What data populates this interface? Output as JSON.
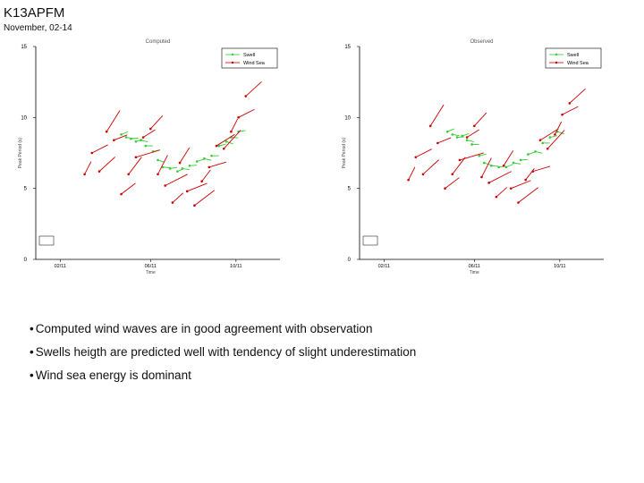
{
  "slide": {
    "title": "K13APFM",
    "subtitle": "November, 02-14"
  },
  "bullets": [
    "Computed wind waves are in good agreement with observation",
    "Swells heigth are predicted well with tendency of slight underestimation",
    "Wind sea energy is dominant"
  ],
  "colors": {
    "swell": "#33cc33",
    "wind_sea": "#cc0000",
    "axis": "#000000"
  },
  "chart_data": [
    {
      "type": "scatter",
      "title": "Computed",
      "ylabel": "Peak Period (s)",
      "xlabel": "Time",
      "ylim": [
        0,
        15
      ],
      "y_ticks": [
        0,
        5,
        10,
        15
      ],
      "x_ticks": [
        "02/11",
        "06/11",
        "10/11"
      ],
      "legend": [
        "Swell",
        "Wind Sea"
      ],
      "legend_position": "top-right",
      "series": [
        {
          "name": "Swell",
          "color": "#33cc33",
          "x": [
            3.5,
            3.7,
            3.9,
            4.1,
            4.3,
            4.5,
            4.8,
            5.0,
            5.2,
            5.5,
            5.8,
            6.0,
            6.3,
            6.6,
            6.9,
            7.2,
            7.5,
            7.8,
            8.0,
            8.3
          ],
          "y": [
            8.8,
            8.6,
            8.5,
            8.3,
            8.4,
            8.0,
            7.6,
            7.0,
            6.5,
            6.4,
            6.2,
            6.4,
            6.6,
            6.9,
            7.1,
            7.3,
            8.0,
            8.3,
            8.6,
            9.0
          ]
        },
        {
          "name": "Wind Sea",
          "color": "#cc0000",
          "x": [
            2.0,
            2.3,
            2.6,
            2.9,
            3.2,
            3.5,
            3.8,
            4.1,
            4.4,
            4.7,
            5.0,
            5.3,
            5.6,
            5.9,
            6.2,
            6.5,
            6.8,
            7.1,
            7.4,
            7.7,
            8.0,
            8.3,
            8.6
          ],
          "y": [
            6.0,
            7.5,
            6.2,
            9.0,
            8.4,
            4.6,
            6.0,
            7.2,
            8.6,
            9.2,
            6.0,
            5.2,
            4.0,
            6.8,
            4.8,
            3.8,
            5.5,
            6.5,
            8.0,
            7.8,
            9.0,
            10.0,
            11.5
          ]
        }
      ]
    },
    {
      "type": "scatter",
      "title": "Observed",
      "ylabel": "Peak Period (s)",
      "xlabel": "Time",
      "ylim": [
        0,
        15
      ],
      "y_ticks": [
        0,
        5,
        10,
        15
      ],
      "x_ticks": [
        "02/11",
        "06/11",
        "10/11"
      ],
      "legend": [
        "Swell",
        "Wind Sea"
      ],
      "legend_position": "top-right",
      "series": [
        {
          "name": "Swell",
          "color": "#33cc33",
          "x": [
            3.6,
            3.8,
            4.0,
            4.2,
            4.4,
            4.6,
            4.9,
            5.1,
            5.4,
            5.7,
            6.0,
            6.3,
            6.6,
            6.9,
            7.2,
            7.5,
            7.8,
            8.1
          ],
          "y": [
            9.0,
            8.8,
            8.6,
            8.7,
            8.4,
            8.1,
            7.3,
            6.8,
            6.6,
            6.5,
            6.5,
            6.8,
            7.0,
            7.4,
            7.6,
            8.2,
            8.6,
            9.0
          ]
        },
        {
          "name": "Wind Sea",
          "color": "#cc0000",
          "x": [
            2.0,
            2.3,
            2.6,
            2.9,
            3.2,
            3.5,
            3.8,
            4.1,
            4.4,
            4.7,
            5.0,
            5.3,
            5.6,
            5.9,
            6.2,
            6.5,
            6.8,
            7.1,
            7.4,
            7.7,
            8.0,
            8.3,
            8.6
          ],
          "y": [
            5.6,
            7.2,
            6.0,
            9.4,
            8.2,
            5.0,
            6.0,
            7.0,
            8.6,
            9.4,
            5.8,
            5.4,
            4.4,
            6.6,
            5.0,
            4.0,
            5.6,
            6.2,
            8.4,
            7.8,
            8.8,
            10.2,
            11.0
          ]
        }
      ]
    }
  ]
}
